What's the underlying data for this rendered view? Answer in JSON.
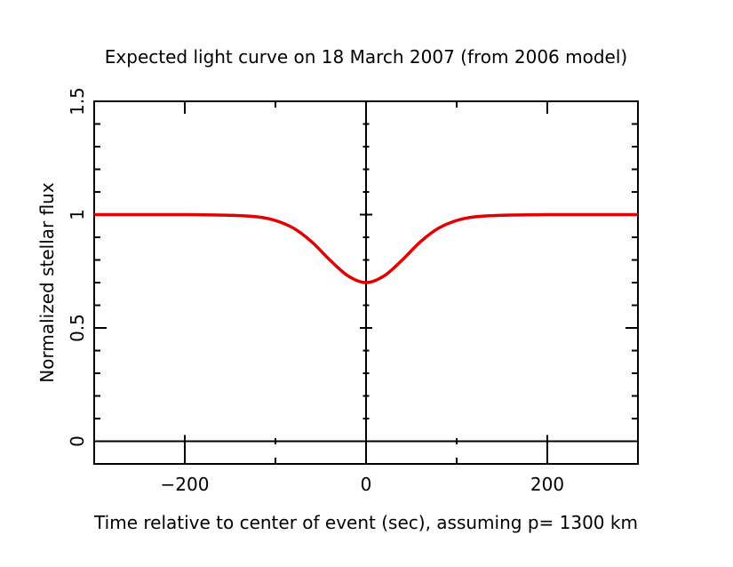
{
  "chart_data": {
    "type": "line",
    "title": "Expected light curve on 18 March 2007 (from 2006 model)",
    "xlabel": "Time relative to center of event (sec), assuming p= 1300 km",
    "ylabel": "Normalized stellar flux",
    "xlim": [
      -300,
      300
    ],
    "ylim": [
      -0.1,
      1.5
    ],
    "x_ticks": [
      -200,
      0,
      200
    ],
    "x_tick_labels": [
      "−200",
      "0",
      "200"
    ],
    "y_ticks": [
      0,
      0.5,
      1,
      1.5
    ],
    "y_tick_labels": [
      "0",
      "0.5",
      "1",
      "1.5"
    ],
    "reference_lines": {
      "horizontal_y": 0,
      "vertical_x": 0
    },
    "grid": false,
    "series": [
      {
        "color": "#e00000",
        "x": [
          -300,
          -250,
          -200,
          -150,
          -120,
          -100,
          -80,
          -60,
          -40,
          -20,
          0,
          20,
          40,
          60,
          80,
          100,
          120,
          150,
          200,
          250,
          300
        ],
        "y": [
          1.0,
          1.0,
          1.0,
          0.997,
          0.99,
          0.974,
          0.94,
          0.88,
          0.8,
          0.73,
          0.7,
          0.73,
          0.8,
          0.88,
          0.94,
          0.974,
          0.99,
          0.997,
          1.0,
          1.0,
          1.0
        ]
      }
    ]
  }
}
